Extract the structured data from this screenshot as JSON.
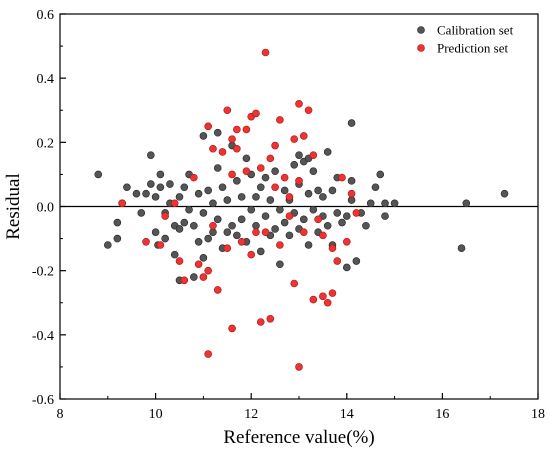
{
  "chart_data": {
    "type": "scatter",
    "title": "",
    "xlabel": "Reference value(%)",
    "ylabel": "Residual",
    "xlim": [
      8,
      18
    ],
    "ylim": [
      -0.6,
      0.6
    ],
    "xticks": [
      "8",
      "10",
      "12",
      "14",
      "16",
      "18"
    ],
    "yticks": [
      "0.6",
      "0.4",
      "0.2",
      "0.0",
      "-0.2",
      "-0.4",
      "-0.6"
    ],
    "xtick_values": [
      8,
      10,
      12,
      14,
      16,
      18
    ],
    "ytick_values": [
      0.6,
      0.4,
      0.2,
      0.0,
      -0.2,
      -0.4,
      -0.6
    ],
    "zero_line": 0,
    "grid": false,
    "legend_position": "top-right",
    "series": [
      {
        "name": "Calibration set",
        "color": "#555555",
        "points": [
          [
            8.8,
            0.1
          ],
          [
            9.0,
            -0.12
          ],
          [
            9.2,
            -0.1
          ],
          [
            9.2,
            -0.05
          ],
          [
            9.3,
            0.01
          ],
          [
            9.4,
            0.06
          ],
          [
            9.6,
            0.04
          ],
          [
            9.7,
            -0.02
          ],
          [
            9.8,
            0.04
          ],
          [
            9.9,
            0.16
          ],
          [
            9.9,
            0.07
          ],
          [
            10.0,
            -0.08
          ],
          [
            10.0,
            0.03
          ],
          [
            10.05,
            -0.12
          ],
          [
            10.1,
            0.1
          ],
          [
            10.1,
            0.06
          ],
          [
            10.2,
            -0.02
          ],
          [
            10.2,
            -0.1
          ],
          [
            10.3,
            0.07
          ],
          [
            10.3,
            0.01
          ],
          [
            10.4,
            -0.15
          ],
          [
            10.4,
            -0.06
          ],
          [
            10.5,
            0.03
          ],
          [
            10.5,
            -0.07
          ],
          [
            10.5,
            -0.23
          ],
          [
            10.6,
            0.06
          ],
          [
            10.6,
            -0.05
          ],
          [
            10.7,
            0.1
          ],
          [
            10.7,
            -0.01
          ],
          [
            10.8,
            -0.06
          ],
          [
            10.8,
            -0.22
          ],
          [
            10.9,
            -0.11
          ],
          [
            10.9,
            0.04
          ],
          [
            11.0,
            -0.02
          ],
          [
            11.0,
            -0.16
          ],
          [
            11.0,
            0.22
          ],
          [
            11.1,
            0.05
          ],
          [
            11.1,
            -0.1
          ],
          [
            11.2,
            0.01
          ],
          [
            11.2,
            -0.08
          ],
          [
            11.3,
            0.23
          ],
          [
            11.3,
            0.12
          ],
          [
            11.3,
            -0.04
          ],
          [
            11.4,
            0.06
          ],
          [
            11.4,
            -0.13
          ],
          [
            11.5,
            0.02
          ],
          [
            11.5,
            -0.08
          ],
          [
            11.6,
            0.19
          ],
          [
            11.6,
            -0.06
          ],
          [
            11.7,
            0.08
          ],
          [
            11.7,
            -0.09
          ],
          [
            11.8,
            0.03
          ],
          [
            11.8,
            -0.04
          ],
          [
            11.9,
            0.15
          ],
          [
            11.9,
            -0.11
          ],
          [
            12.0,
            -0.01
          ],
          [
            12.0,
            0.1
          ],
          [
            12.1,
            -0.06
          ],
          [
            12.1,
            0.03
          ],
          [
            12.2,
            -0.14
          ],
          [
            12.2,
            0.06
          ],
          [
            12.3,
            0.09
          ],
          [
            12.3,
            -0.03
          ],
          [
            12.4,
            -0.09
          ],
          [
            12.4,
            0.02
          ],
          [
            12.5,
            -0.07
          ],
          [
            12.5,
            0.11
          ],
          [
            12.6,
            -0.01
          ],
          [
            12.6,
            -0.18
          ],
          [
            12.7,
            0.05
          ],
          [
            12.7,
            -0.05
          ],
          [
            12.8,
            0.02
          ],
          [
            12.8,
            -0.09
          ],
          [
            12.9,
            0.13
          ],
          [
            12.9,
            -0.02
          ],
          [
            13.0,
            0.16
          ],
          [
            13.0,
            0.07
          ],
          [
            13.0,
            -0.07
          ],
          [
            13.1,
            0.14
          ],
          [
            13.1,
            -0.04
          ],
          [
            13.2,
            0.15
          ],
          [
            13.2,
            0.04
          ],
          [
            13.2,
            -0.12
          ],
          [
            13.3,
            0.11
          ],
          [
            13.3,
            -0.01
          ],
          [
            13.4,
            0.05
          ],
          [
            13.4,
            -0.08
          ],
          [
            13.5,
            0.03
          ],
          [
            13.5,
            -0.03
          ],
          [
            13.6,
            0.17
          ],
          [
            13.6,
            -0.06
          ],
          [
            13.7,
            0.05
          ],
          [
            13.7,
            -0.12
          ],
          [
            13.8,
            -0.02
          ],
          [
            13.8,
            0.09
          ],
          [
            13.9,
            -0.05
          ],
          [
            14.0,
            -0.03
          ],
          [
            14.0,
            -0.19
          ],
          [
            14.1,
            0.26
          ],
          [
            14.1,
            0.08
          ],
          [
            14.1,
            0.02
          ],
          [
            14.2,
            -0.17
          ],
          [
            14.3,
            -0.02
          ],
          [
            14.4,
            -0.06
          ],
          [
            14.5,
            0.01
          ],
          [
            14.6,
            0.06
          ],
          [
            14.7,
            0.1
          ],
          [
            14.8,
            0.01
          ],
          [
            14.8,
            -0.03
          ],
          [
            15.0,
            0.01
          ],
          [
            16.4,
            -0.13
          ],
          [
            16.5,
            0.01
          ],
          [
            17.3,
            0.04
          ]
        ]
      },
      {
        "name": "Prediction set",
        "color": "#ee3333",
        "points": [
          [
            9.3,
            0.01
          ],
          [
            9.8,
            -0.11
          ],
          [
            10.1,
            -0.12
          ],
          [
            10.2,
            -0.03
          ],
          [
            10.4,
            0.01
          ],
          [
            10.5,
            -0.17
          ],
          [
            10.6,
            -0.23
          ],
          [
            10.8,
            0.09
          ],
          [
            10.9,
            -0.18
          ],
          [
            11.0,
            -0.22
          ],
          [
            11.1,
            0.25
          ],
          [
            11.1,
            -0.46
          ],
          [
            11.1,
            -0.2
          ],
          [
            11.2,
            0.18
          ],
          [
            11.2,
            -0.06
          ],
          [
            11.3,
            -0.26
          ],
          [
            11.4,
            0.17
          ],
          [
            11.5,
            0.3
          ],
          [
            11.5,
            -0.13
          ],
          [
            11.6,
            0.21
          ],
          [
            11.6,
            0.1
          ],
          [
            11.6,
            -0.38
          ],
          [
            11.7,
            0.24
          ],
          [
            11.7,
            0.18
          ],
          [
            11.8,
            -0.11
          ],
          [
            11.9,
            0.24
          ],
          [
            11.9,
            0.11
          ],
          [
            12.0,
            0.28
          ],
          [
            12.0,
            -0.15
          ],
          [
            12.1,
            0.29
          ],
          [
            12.1,
            -0.08
          ],
          [
            12.2,
            0.12
          ],
          [
            12.2,
            -0.36
          ],
          [
            12.3,
            0.48
          ],
          [
            12.3,
            -0.08
          ],
          [
            12.4,
            0.15
          ],
          [
            12.4,
            -0.35
          ],
          [
            12.5,
            0.19
          ],
          [
            12.5,
            0.06
          ],
          [
            12.6,
            0.27
          ],
          [
            12.6,
            -0.12
          ],
          [
            12.7,
            0.09
          ],
          [
            12.8,
            -0.03
          ],
          [
            12.8,
            0.03
          ],
          [
            12.9,
            0.21
          ],
          [
            12.9,
            -0.24
          ],
          [
            13.0,
            0.32
          ],
          [
            13.0,
            -0.5
          ],
          [
            13.0,
            0.08
          ],
          [
            13.1,
            0.22
          ],
          [
            13.1,
            -0.08
          ],
          [
            13.2,
            0.3
          ],
          [
            13.3,
            0.16
          ],
          [
            13.3,
            -0.29
          ],
          [
            13.4,
            -0.04
          ],
          [
            13.5,
            -0.09
          ],
          [
            13.5,
            -0.28
          ],
          [
            13.6,
            -0.3
          ],
          [
            13.7,
            -0.13
          ],
          [
            13.7,
            -0.27
          ],
          [
            13.8,
            -0.17
          ],
          [
            13.9,
            0.09
          ],
          [
            14.0,
            -0.11
          ],
          [
            14.1,
            0.04
          ],
          [
            14.2,
            -0.02
          ]
        ]
      }
    ]
  }
}
